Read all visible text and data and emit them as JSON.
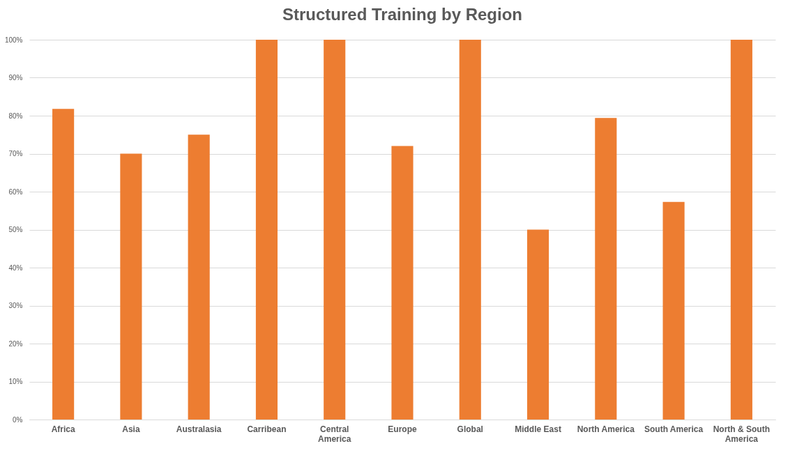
{
  "chart_data": {
    "type": "bar",
    "title": "Structured Training by Region",
    "categories": [
      "Africa",
      "Asia",
      "Australasia",
      "Carribean",
      "Central America",
      "Europe",
      "Global",
      "Middle East",
      "North America",
      "South America",
      "North & South America"
    ],
    "values": [
      81.8,
      70,
      75,
      100,
      100,
      72,
      100,
      50,
      79.4,
      57.3,
      100
    ],
    "color": "#ed7d31",
    "ylim": [
      0,
      100
    ],
    "yticks": [
      {
        "value": 0,
        "label": "0%"
      },
      {
        "value": 10,
        "label": "10%"
      },
      {
        "value": 20,
        "label": "20%"
      },
      {
        "value": 30,
        "label": "30%"
      },
      {
        "value": 40,
        "label": "40%"
      },
      {
        "value": 50,
        "label": "50%"
      },
      {
        "value": 60,
        "label": "60%"
      },
      {
        "value": 70,
        "label": "70%"
      },
      {
        "value": 80,
        "label": "80%"
      },
      {
        "value": 90,
        "label": "90%"
      },
      {
        "value": 100,
        "label": "100%"
      }
    ],
    "grid": "y"
  }
}
